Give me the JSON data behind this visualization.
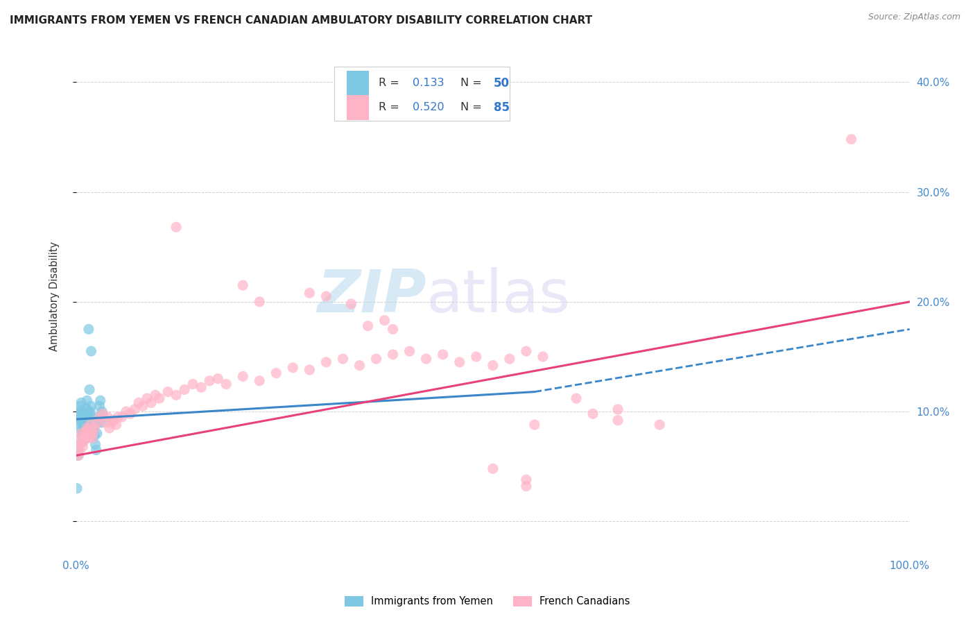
{
  "title": "IMMIGRANTS FROM YEMEN VS FRENCH CANADIAN AMBULATORY DISABILITY CORRELATION CHART",
  "source": "Source: ZipAtlas.com",
  "ylabel": "Ambulatory Disability",
  "xlim": [
    0.0,
    1.0
  ],
  "ylim": [
    -0.03,
    0.44
  ],
  "color_yemen": "#7ec8e3",
  "color_french": "#ffb3c6",
  "trendline_yemen_color": "#3a86c8",
  "trendline_french_color": "#e8407a",
  "background_color": "#ffffff",
  "watermark_zip": "ZIP",
  "watermark_atlas": "atlas",
  "scatter_yemen": [
    [
      0.001,
      0.095
    ],
    [
      0.002,
      0.098
    ],
    [
      0.003,
      0.1
    ],
    [
      0.004,
      0.105
    ],
    [
      0.005,
      0.095
    ],
    [
      0.006,
      0.108
    ],
    [
      0.007,
      0.09
    ],
    [
      0.008,
      0.1
    ],
    [
      0.009,
      0.095
    ],
    [
      0.01,
      0.085
    ],
    [
      0.011,
      0.075
    ],
    [
      0.012,
      0.09
    ],
    [
      0.013,
      0.11
    ],
    [
      0.014,
      0.095
    ],
    [
      0.015,
      0.1
    ],
    [
      0.016,
      0.12
    ],
    [
      0.017,
      0.1
    ],
    [
      0.018,
      0.105
    ],
    [
      0.019,
      0.095
    ],
    [
      0.02,
      0.09
    ],
    [
      0.021,
      0.085
    ],
    [
      0.022,
      0.078
    ],
    [
      0.023,
      0.07
    ],
    [
      0.024,
      0.065
    ],
    [
      0.025,
      0.08
    ],
    [
      0.026,
      0.09
    ],
    [
      0.027,
      0.095
    ],
    [
      0.028,
      0.105
    ],
    [
      0.029,
      0.11
    ],
    [
      0.03,
      0.09
    ],
    [
      0.031,
      0.1
    ],
    [
      0.032,
      0.095
    ],
    [
      0.003,
      0.095
    ],
    [
      0.004,
      0.092
    ],
    [
      0.005,
      0.088
    ],
    [
      0.006,
      0.083
    ],
    [
      0.007,
      0.078
    ],
    [
      0.008,
      0.082
    ],
    [
      0.009,
      0.087
    ],
    [
      0.01,
      0.093
    ],
    [
      0.011,
      0.098
    ],
    [
      0.012,
      0.103
    ],
    [
      0.013,
      0.091
    ],
    [
      0.014,
      0.086
    ],
    [
      0.001,
      0.065
    ],
    [
      0.002,
      0.06
    ],
    [
      0.003,
      0.07
    ],
    [
      0.015,
      0.175
    ],
    [
      0.018,
      0.155
    ],
    [
      0.001,
      0.03
    ]
  ],
  "scatter_french": [
    [
      0.001,
      0.068
    ],
    [
      0.002,
      0.063
    ],
    [
      0.003,
      0.06
    ],
    [
      0.004,
      0.065
    ],
    [
      0.005,
      0.075
    ],
    [
      0.006,
      0.08
    ],
    [
      0.007,
      0.072
    ],
    [
      0.008,
      0.068
    ],
    [
      0.009,
      0.073
    ],
    [
      0.01,
      0.078
    ],
    [
      0.011,
      0.082
    ],
    [
      0.012,
      0.077
    ],
    [
      0.013,
      0.085
    ],
    [
      0.014,
      0.079
    ],
    [
      0.015,
      0.083
    ],
    [
      0.016,
      0.076
    ],
    [
      0.017,
      0.088
    ],
    [
      0.018,
      0.082
    ],
    [
      0.019,
      0.076
    ],
    [
      0.02,
      0.08
    ],
    [
      0.022,
      0.085
    ],
    [
      0.025,
      0.09
    ],
    [
      0.028,
      0.095
    ],
    [
      0.032,
      0.098
    ],
    [
      0.035,
      0.09
    ],
    [
      0.038,
      0.095
    ],
    [
      0.04,
      0.085
    ],
    [
      0.042,
      0.09
    ],
    [
      0.045,
      0.092
    ],
    [
      0.048,
      0.088
    ],
    [
      0.05,
      0.095
    ],
    [
      0.055,
      0.095
    ],
    [
      0.06,
      0.1
    ],
    [
      0.065,
      0.098
    ],
    [
      0.07,
      0.102
    ],
    [
      0.075,
      0.108
    ],
    [
      0.08,
      0.105
    ],
    [
      0.085,
      0.112
    ],
    [
      0.09,
      0.108
    ],
    [
      0.095,
      0.115
    ],
    [
      0.1,
      0.112
    ],
    [
      0.11,
      0.118
    ],
    [
      0.12,
      0.115
    ],
    [
      0.13,
      0.12
    ],
    [
      0.14,
      0.125
    ],
    [
      0.15,
      0.122
    ],
    [
      0.16,
      0.128
    ],
    [
      0.17,
      0.13
    ],
    [
      0.18,
      0.125
    ],
    [
      0.2,
      0.132
    ],
    [
      0.22,
      0.128
    ],
    [
      0.24,
      0.135
    ],
    [
      0.26,
      0.14
    ],
    [
      0.28,
      0.138
    ],
    [
      0.3,
      0.145
    ],
    [
      0.32,
      0.148
    ],
    [
      0.34,
      0.142
    ],
    [
      0.36,
      0.148
    ],
    [
      0.38,
      0.152
    ],
    [
      0.4,
      0.155
    ],
    [
      0.42,
      0.148
    ],
    [
      0.44,
      0.152
    ],
    [
      0.46,
      0.145
    ],
    [
      0.48,
      0.15
    ],
    [
      0.5,
      0.142
    ],
    [
      0.52,
      0.148
    ],
    [
      0.54,
      0.155
    ],
    [
      0.56,
      0.15
    ],
    [
      0.6,
      0.112
    ],
    [
      0.62,
      0.098
    ],
    [
      0.65,
      0.102
    ],
    [
      0.3,
      0.205
    ],
    [
      0.33,
      0.198
    ],
    [
      0.35,
      0.178
    ],
    [
      0.37,
      0.183
    ],
    [
      0.38,
      0.175
    ],
    [
      0.2,
      0.215
    ],
    [
      0.22,
      0.2
    ],
    [
      0.28,
      0.208
    ],
    [
      0.12,
      0.268
    ],
    [
      0.54,
      0.038
    ],
    [
      0.54,
      0.032
    ],
    [
      0.93,
      0.348
    ],
    [
      0.5,
      0.048
    ],
    [
      0.55,
      0.088
    ],
    [
      0.65,
      0.092
    ],
    [
      0.7,
      0.088
    ]
  ],
  "trendline_yemen": [
    [
      0.0,
      0.093
    ],
    [
      0.55,
      0.118
    ]
  ],
  "trendline_french": [
    [
      0.0,
      0.06
    ],
    [
      1.0,
      0.2
    ]
  ],
  "trendline_yemen_ext": [
    [
      0.55,
      0.118
    ],
    [
      1.0,
      0.175
    ]
  ]
}
